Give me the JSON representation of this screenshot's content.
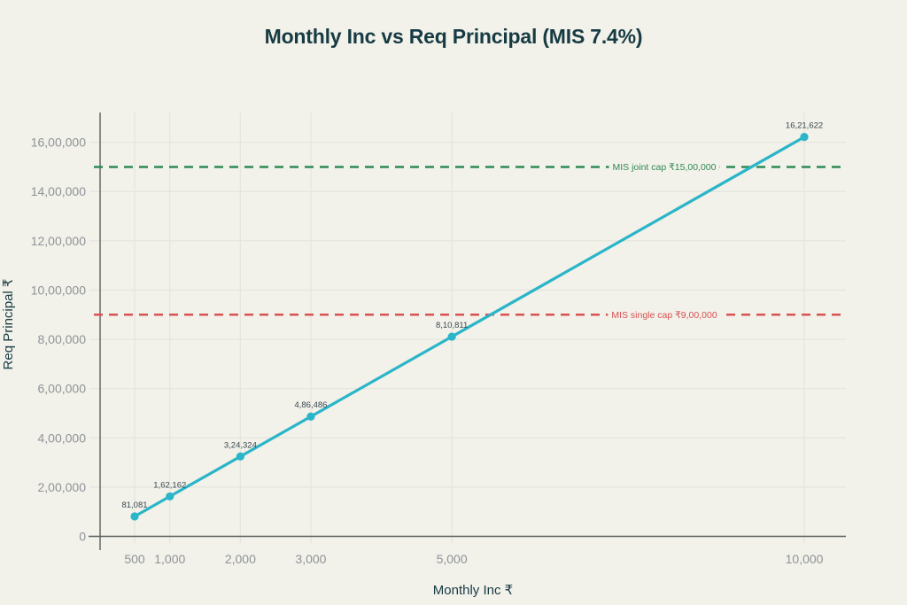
{
  "title": "Monthly Inc vs Req Principal (MIS 7.4%)",
  "colors": {
    "background": "#f2f1ea",
    "series": "#2ab5c8",
    "joint_cap": "#2f8a56",
    "single_cap": "#d95252",
    "grid": "#e5e5de",
    "axis": "#5a5e5c",
    "tick_text": "#8f9498",
    "point_label_text": "#394850",
    "title_text": "#173b43"
  },
  "chart_data": {
    "type": "line",
    "title": "Monthly Inc vs Req Principal (MIS 7.4%)",
    "xlabel": "Monthly Inc ₹",
    "ylabel": "Req Principal ₹",
    "series_name": "Req Principal",
    "x": [
      500,
      1000,
      2000,
      3000,
      5000,
      10000
    ],
    "y": [
      81081,
      162162,
      324324,
      486486,
      810811,
      1621622
    ],
    "point_labels": [
      "81,081",
      "1,62,162",
      "3,24,324",
      "4,86,486",
      "8,10,811",
      "16,21,622"
    ],
    "x_ticks": {
      "values": [
        500,
        1000,
        2000,
        3000,
        5000,
        10000
      ],
      "labels": [
        "500",
        "1,000",
        "2,000",
        "3,000",
        "5,000",
        "10,000"
      ]
    },
    "y_ticks": {
      "values": [
        0,
        200000,
        400000,
        600000,
        800000,
        1000000,
        1200000,
        1400000,
        1600000
      ],
      "labels": [
        "0",
        "2,00,000",
        "4,00,000",
        "6,00,000",
        "8,00,000",
        "10,00,000",
        "12,00,000",
        "14,00,000",
        "16,00,000"
      ]
    },
    "xlim": [
      0,
      10590
    ],
    "ylim": [
      0,
      1721000
    ],
    "grid": true,
    "legend": "none",
    "annotations": [
      {
        "label": "MIS joint cap ₹15,00,000",
        "y": 1500000,
        "color": "#2f8a56"
      },
      {
        "label": "MIS single cap ₹9,00,000",
        "y": 900000,
        "color": "#d95252"
      }
    ]
  }
}
